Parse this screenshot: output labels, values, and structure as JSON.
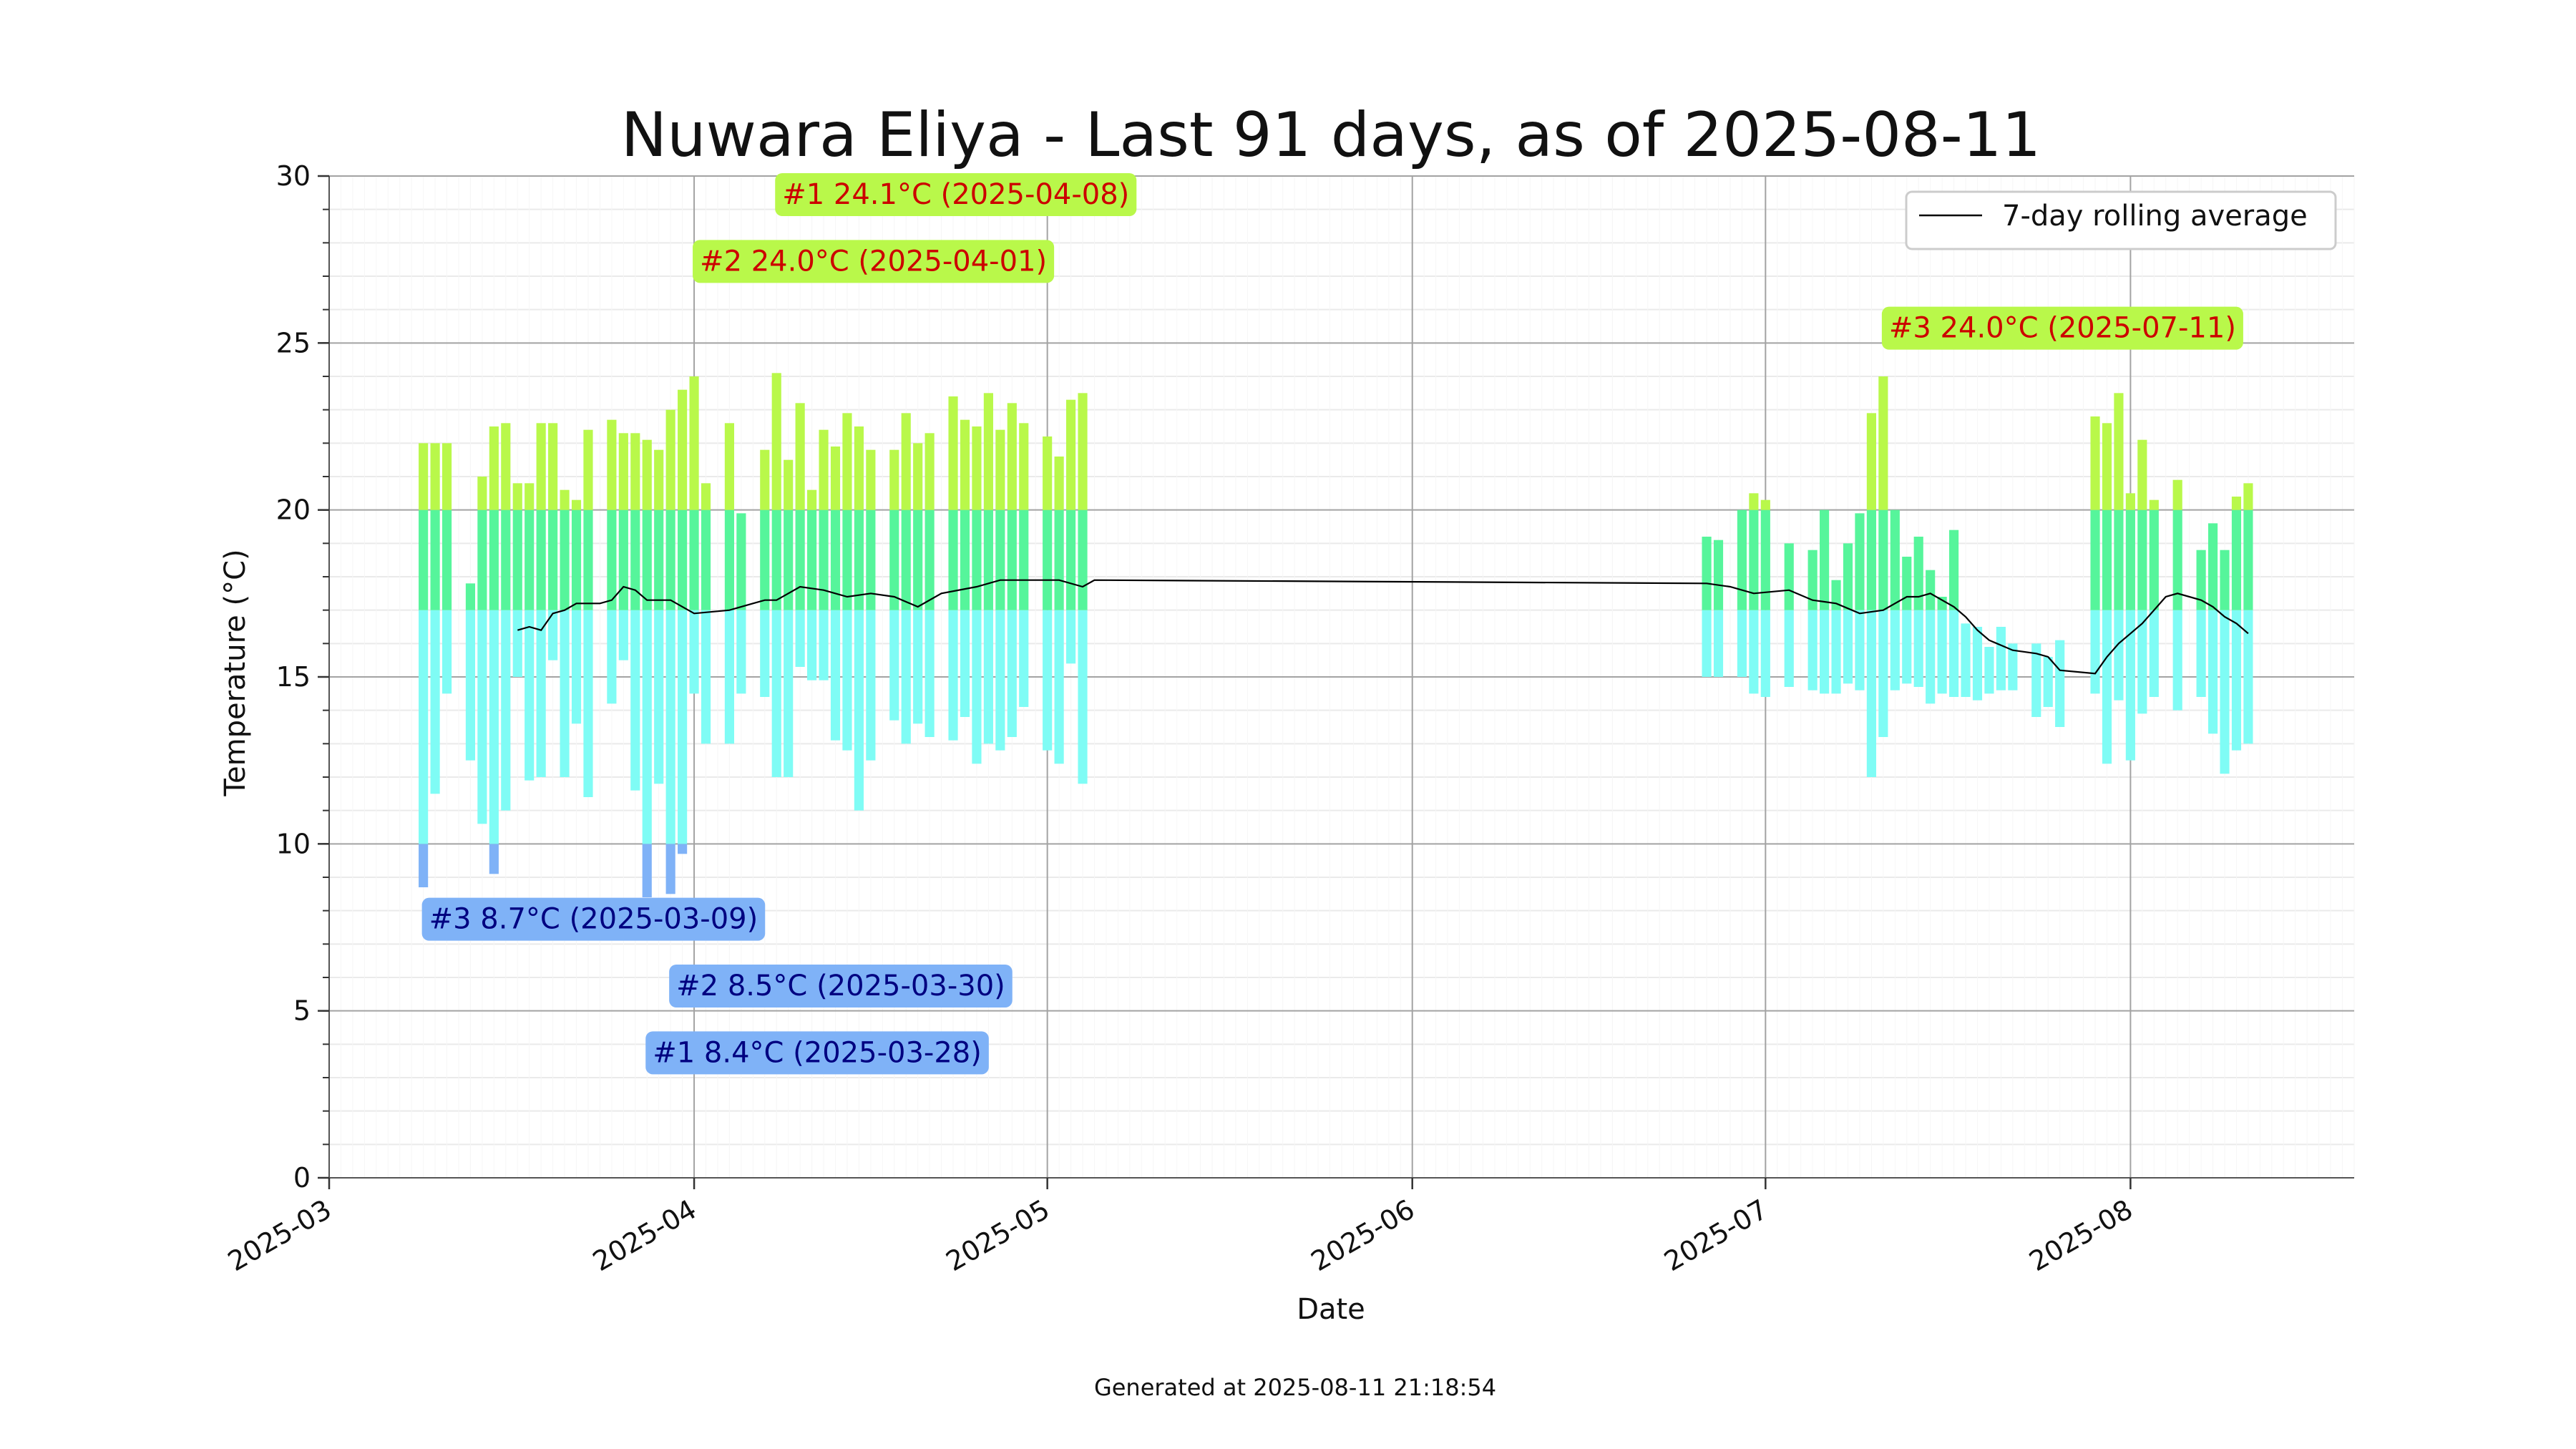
{
  "chart_data": {
    "type": "bar",
    "title": "Nuwara Eliya - Last 91 days, as of 2025-08-11",
    "xlabel": "Date",
    "ylabel": "Temperature (°C)",
    "ylim": [
      0,
      30
    ],
    "yticks": [
      0,
      5,
      10,
      15,
      20,
      25,
      30
    ],
    "xlim": [
      "2025-03-01",
      "2025-08-20"
    ],
    "xticks": [
      "2025-03",
      "2025-04",
      "2025-05",
      "2025-06",
      "2025-07",
      "2025-08"
    ],
    "grid": true,
    "legend": {
      "position": "top-right",
      "entries": [
        "7-day rolling average"
      ]
    },
    "footer": "Generated at 2025-08-11 21:18:54",
    "colors": {
      "warm": "#b9f84a",
      "mid": "#56f59b",
      "cool": "#7ffcf5",
      "cold": "#7fb2f7",
      "avg_line": "#000000",
      "hot_text": "#cc0000",
      "cold_text": "#000080"
    },
    "series": [
      {
        "name": "daily range",
        "data": [
          [
            "2025-03-09",
            8.7,
            22.0
          ],
          [
            "2025-03-10",
            11.5,
            22.0
          ],
          [
            "2025-03-11",
            14.5,
            22.0
          ],
          [
            "2025-03-13",
            12.5,
            17.8
          ],
          [
            "2025-03-14",
            10.6,
            21.0
          ],
          [
            "2025-03-15",
            9.1,
            22.5
          ],
          [
            "2025-03-16",
            11.0,
            22.6
          ],
          [
            "2025-03-17",
            15.0,
            20.8
          ],
          [
            "2025-03-18",
            11.9,
            20.8
          ],
          [
            "2025-03-19",
            12.0,
            22.6
          ],
          [
            "2025-03-20",
            15.5,
            22.6
          ],
          [
            "2025-03-21",
            12.0,
            20.6
          ],
          [
            "2025-03-22",
            13.6,
            20.3
          ],
          [
            "2025-03-23",
            11.4,
            22.4
          ],
          [
            "2025-03-25",
            14.2,
            22.7
          ],
          [
            "2025-03-26",
            15.5,
            22.3
          ],
          [
            "2025-03-27",
            11.6,
            22.3
          ],
          [
            "2025-03-28",
            8.4,
            22.1
          ],
          [
            "2025-03-29",
            11.8,
            21.8
          ],
          [
            "2025-03-30",
            8.5,
            23.0
          ],
          [
            "2025-03-31",
            9.7,
            23.6
          ],
          [
            "2025-04-01",
            14.5,
            24.0
          ],
          [
            "2025-04-02",
            13.0,
            20.8
          ],
          [
            "2025-04-04",
            13.0,
            22.6
          ],
          [
            "2025-04-05",
            14.5,
            19.9
          ],
          [
            "2025-04-07",
            14.4,
            21.8
          ],
          [
            "2025-04-08",
            12.0,
            24.1
          ],
          [
            "2025-04-09",
            12.0,
            21.5
          ],
          [
            "2025-04-10",
            15.3,
            23.2
          ],
          [
            "2025-04-11",
            14.9,
            20.6
          ],
          [
            "2025-04-12",
            14.9,
            22.4
          ],
          [
            "2025-04-13",
            13.1,
            21.9
          ],
          [
            "2025-04-14",
            12.8,
            22.9
          ],
          [
            "2025-04-15",
            11.0,
            22.5
          ],
          [
            "2025-04-16",
            12.5,
            21.8
          ],
          [
            "2025-04-18",
            13.7,
            21.8
          ],
          [
            "2025-04-19",
            13.0,
            22.9
          ],
          [
            "2025-04-20",
            13.6,
            22.0
          ],
          [
            "2025-04-21",
            13.2,
            22.3
          ],
          [
            "2025-04-23",
            13.1,
            23.4
          ],
          [
            "2025-04-24",
            13.8,
            22.7
          ],
          [
            "2025-04-25",
            12.4,
            22.5
          ],
          [
            "2025-04-26",
            13.0,
            23.5
          ],
          [
            "2025-04-27",
            12.8,
            22.4
          ],
          [
            "2025-04-28",
            13.2,
            23.2
          ],
          [
            "2025-04-29",
            14.1,
            22.6
          ],
          [
            "2025-05-01",
            12.8,
            22.2
          ],
          [
            "2025-05-02",
            12.4,
            21.6
          ],
          [
            "2025-05-03",
            15.4,
            23.3
          ],
          [
            "2025-05-04",
            11.8,
            23.5
          ],
          [
            "2025-06-26",
            15.0,
            19.2
          ],
          [
            "2025-06-27",
            15.0,
            19.1
          ],
          [
            "2025-06-29",
            15.0,
            20.0
          ],
          [
            "2025-06-30",
            14.5,
            20.5
          ],
          [
            "2025-07-01",
            14.4,
            20.3
          ],
          [
            "2025-07-03",
            14.7,
            19.0
          ],
          [
            "2025-07-05",
            14.6,
            18.8
          ],
          [
            "2025-07-06",
            14.5,
            20.0
          ],
          [
            "2025-07-07",
            14.5,
            17.9
          ],
          [
            "2025-07-08",
            14.8,
            19.0
          ],
          [
            "2025-07-09",
            14.6,
            19.9
          ],
          [
            "2025-07-10",
            12.0,
            22.9
          ],
          [
            "2025-07-11",
            13.2,
            24.0
          ],
          [
            "2025-07-12",
            14.6,
            20.0
          ],
          [
            "2025-07-13",
            14.8,
            18.6
          ],
          [
            "2025-07-14",
            14.7,
            19.2
          ],
          [
            "2025-07-15",
            14.2,
            18.2
          ],
          [
            "2025-07-16",
            14.5,
            17.4
          ],
          [
            "2025-07-17",
            14.4,
            19.4
          ],
          [
            "2025-07-18",
            14.4,
            16.6
          ],
          [
            "2025-07-19",
            14.3,
            16.5
          ],
          [
            "2025-07-20",
            14.5,
            15.9
          ],
          [
            "2025-07-21",
            14.6,
            16.5
          ],
          [
            "2025-07-22",
            14.6,
            16.0
          ],
          [
            "2025-07-24",
            13.8,
            16.0
          ],
          [
            "2025-07-25",
            14.1,
            15.6
          ],
          [
            "2025-07-26",
            13.5,
            16.1
          ],
          [
            "2025-07-29",
            14.5,
            22.8
          ],
          [
            "2025-07-30",
            12.4,
            22.6
          ],
          [
            "2025-07-31",
            14.3,
            23.5
          ],
          [
            "2025-08-01",
            12.5,
            20.5
          ],
          [
            "2025-08-02",
            13.9,
            22.1
          ],
          [
            "2025-08-03",
            14.4,
            20.3
          ],
          [
            "2025-08-05",
            14.0,
            20.9
          ],
          [
            "2025-08-07",
            14.4,
            18.8
          ],
          [
            "2025-08-08",
            13.3,
            19.6
          ],
          [
            "2025-08-09",
            12.1,
            18.8
          ],
          [
            "2025-08-10",
            12.8,
            20.4
          ],
          [
            "2025-08-11",
            13.0,
            20.8
          ]
        ]
      },
      {
        "name": "7-day rolling average",
        "data": [
          [
            "2025-03-17",
            16.4
          ],
          [
            "2025-03-18",
            16.5
          ],
          [
            "2025-03-19",
            16.4
          ],
          [
            "2025-03-20",
            16.9
          ],
          [
            "2025-03-21",
            17.0
          ],
          [
            "2025-03-22",
            17.2
          ],
          [
            "2025-03-24",
            17.2
          ],
          [
            "2025-03-25",
            17.3
          ],
          [
            "2025-03-26",
            17.7
          ],
          [
            "2025-03-27",
            17.6
          ],
          [
            "2025-03-28",
            17.3
          ],
          [
            "2025-03-30",
            17.3
          ],
          [
            "2025-04-01",
            16.9
          ],
          [
            "2025-04-04",
            17.0
          ],
          [
            "2025-04-06",
            17.2
          ],
          [
            "2025-04-07",
            17.3
          ],
          [
            "2025-04-08",
            17.3
          ],
          [
            "2025-04-10",
            17.7
          ],
          [
            "2025-04-12",
            17.6
          ],
          [
            "2025-04-14",
            17.4
          ],
          [
            "2025-04-16",
            17.5
          ],
          [
            "2025-04-18",
            17.4
          ],
          [
            "2025-04-20",
            17.1
          ],
          [
            "2025-04-22",
            17.5
          ],
          [
            "2025-04-25",
            17.7
          ],
          [
            "2025-04-27",
            17.9
          ],
          [
            "2025-04-30",
            17.9
          ],
          [
            "2025-05-02",
            17.9
          ],
          [
            "2025-05-04",
            17.7
          ],
          [
            "2025-05-05",
            17.9
          ],
          [
            "2025-06-26",
            17.8
          ],
          [
            "2025-06-28",
            17.7
          ],
          [
            "2025-06-30",
            17.5
          ],
          [
            "2025-07-03",
            17.6
          ],
          [
            "2025-07-05",
            17.3
          ],
          [
            "2025-07-07",
            17.2
          ],
          [
            "2025-07-09",
            16.9
          ],
          [
            "2025-07-11",
            17.0
          ],
          [
            "2025-07-12",
            17.2
          ],
          [
            "2025-07-13",
            17.4
          ],
          [
            "2025-07-14",
            17.4
          ],
          [
            "2025-07-15",
            17.5
          ],
          [
            "2025-07-16",
            17.3
          ],
          [
            "2025-07-17",
            17.1
          ],
          [
            "2025-07-18",
            16.8
          ],
          [
            "2025-07-19",
            16.4
          ],
          [
            "2025-07-20",
            16.1
          ],
          [
            "2025-07-22",
            15.8
          ],
          [
            "2025-07-24",
            15.7
          ],
          [
            "2025-07-25",
            15.6
          ],
          [
            "2025-07-26",
            15.2
          ],
          [
            "2025-07-29",
            15.1
          ],
          [
            "2025-07-30",
            15.6
          ],
          [
            "2025-07-31",
            16.0
          ],
          [
            "2025-08-01",
            16.3
          ],
          [
            "2025-08-02",
            16.6
          ],
          [
            "2025-08-03",
            17.0
          ],
          [
            "2025-08-04",
            17.4
          ],
          [
            "2025-08-05",
            17.5
          ],
          [
            "2025-08-07",
            17.3
          ],
          [
            "2025-08-08",
            17.1
          ],
          [
            "2025-08-09",
            16.8
          ],
          [
            "2025-08-10",
            16.6
          ],
          [
            "2025-08-11",
            16.3
          ]
        ]
      }
    ],
    "annotations": [
      {
        "text": "#1 24.1°C (2025-04-08)",
        "kind": "hot",
        "anchor": "2025-04-08",
        "level": 29.4
      },
      {
        "text": "#2 24.0°C (2025-04-01)",
        "kind": "hot",
        "anchor": "2025-04-01",
        "level": 27.4
      },
      {
        "text": "#3 24.0°C (2025-07-11)",
        "kind": "hot",
        "anchor": "2025-07-11",
        "level": 25.4
      },
      {
        "text": "#3 8.7°C (2025-03-09)",
        "kind": "cold",
        "anchor": "2025-03-09",
        "level": 7.7
      },
      {
        "text": "#2 8.5°C (2025-03-30)",
        "kind": "cold",
        "anchor": "2025-03-30",
        "level": 5.7
      },
      {
        "text": "#1 8.4°C (2025-03-28)",
        "kind": "cold",
        "anchor": "2025-03-28",
        "level": 3.7
      }
    ]
  }
}
